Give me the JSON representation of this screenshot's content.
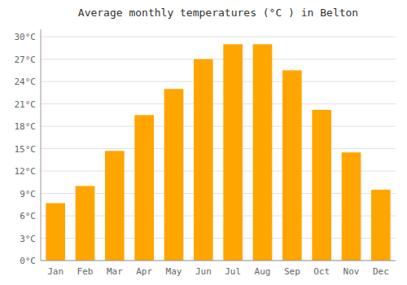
{
  "chart_data": {
    "type": "bar",
    "title": "Average monthly temperatures (°C ) in Belton",
    "categories": [
      "Jan",
      "Feb",
      "Mar",
      "Apr",
      "May",
      "Jun",
      "Jul",
      "Aug",
      "Sep",
      "Oct",
      "Nov",
      "Dec"
    ],
    "values": [
      7.7,
      10.0,
      14.7,
      19.5,
      23.0,
      27.0,
      29.0,
      29.0,
      25.5,
      20.2,
      14.5,
      9.5
    ],
    "color": "#FFA500",
    "ylim": [
      0,
      31
    ],
    "yticks": [
      {
        "value": 0,
        "label": "0°C"
      },
      {
        "value": 3,
        "label": "3°C"
      },
      {
        "value": 6,
        "label": "6°C"
      },
      {
        "value": 9,
        "label": "9°C"
      },
      {
        "value": 12,
        "label": "12°C"
      },
      {
        "value": 15,
        "label": "15°C"
      },
      {
        "value": 18,
        "label": "18°C"
      },
      {
        "value": 21,
        "label": "21°C"
      },
      {
        "value": 24,
        "label": "24°C"
      },
      {
        "value": 27,
        "label": "27°C"
      },
      {
        "value": 30,
        "label": "30°C"
      }
    ],
    "grid": true
  }
}
